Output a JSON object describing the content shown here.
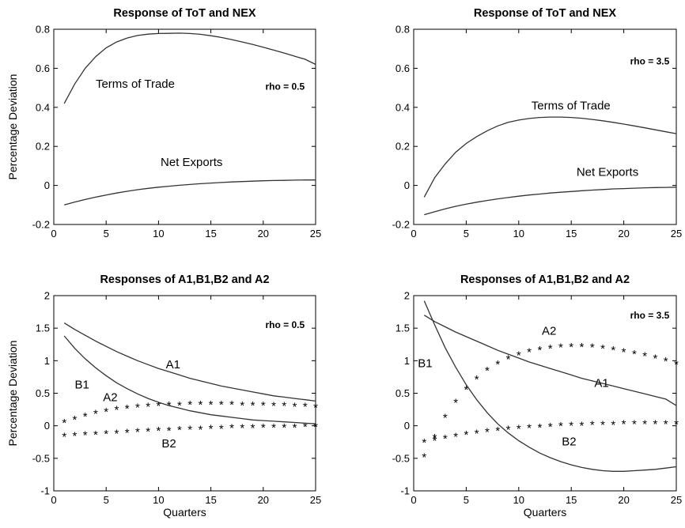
{
  "chart_data": [
    {
      "type": "line",
      "title": "Response of ToT and NEX",
      "xlabel": "",
      "ylabel": "Percentage Deviation",
      "xlim": [
        0,
        25
      ],
      "ylim": [
        -0.2,
        0.8
      ],
      "xticks": [
        "0",
        "5",
        "10",
        "15",
        "20",
        "25"
      ],
      "yticks": [
        "-0.2",
        "0",
        "0.2",
        "0.4",
        "0.6",
        "0.8"
      ],
      "grid": false,
      "annotations": [
        {
          "text": "rho = 0.5",
          "x": 20.2,
          "y": 0.49,
          "bold": true
        }
      ],
      "series": [
        {
          "name": "Terms of Trade",
          "label_pos": [
            4,
            0.5
          ],
          "marker": "none",
          "x": [
            1,
            2,
            3,
            4,
            5,
            6,
            7,
            8,
            9,
            10,
            11,
            12,
            13,
            14,
            15,
            16,
            17,
            18,
            19,
            20,
            21,
            22,
            23,
            24,
            25
          ],
          "values": [
            0.42,
            0.52,
            0.6,
            0.66,
            0.705,
            0.735,
            0.755,
            0.768,
            0.775,
            0.778,
            0.779,
            0.78,
            0.778,
            0.774,
            0.767,
            0.758,
            0.747,
            0.735,
            0.722,
            0.708,
            0.693,
            0.678,
            0.662,
            0.646,
            0.62
          ]
        },
        {
          "name": "Net Exports",
          "label_pos": [
            10.2,
            0.1
          ],
          "marker": "none",
          "x": [
            1,
            2,
            3,
            4,
            5,
            6,
            7,
            8,
            9,
            10,
            11,
            12,
            13,
            14,
            15,
            16,
            17,
            18,
            19,
            20,
            21,
            22,
            23,
            24,
            25
          ],
          "values": [
            -0.1,
            -0.085,
            -0.072,
            -0.06,
            -0.049,
            -0.039,
            -0.03,
            -0.022,
            -0.015,
            -0.009,
            -0.004,
            0.001,
            0.005,
            0.009,
            0.012,
            0.015,
            0.018,
            0.02,
            0.022,
            0.024,
            0.025,
            0.026,
            0.027,
            0.028,
            0.028
          ]
        }
      ]
    },
    {
      "type": "line",
      "title": "Response of ToT and NEX",
      "xlabel": "",
      "ylabel": "",
      "xlim": [
        0,
        25
      ],
      "ylim": [
        -0.2,
        0.8
      ],
      "xticks": [
        "0",
        "5",
        "10",
        "15",
        "20",
        "25"
      ],
      "yticks": [
        "-0.2",
        "0",
        "0.2",
        "0.4",
        "0.6",
        "0.8"
      ],
      "grid": false,
      "annotations": [
        {
          "text": "rho = 3.5",
          "x": 20.6,
          "y": 0.62,
          "bold": true
        }
      ],
      "series": [
        {
          "name": "Terms of Trade",
          "label_pos": [
            11.2,
            0.39
          ],
          "marker": "none",
          "x": [
            1,
            2,
            3,
            4,
            5,
            6,
            7,
            8,
            9,
            10,
            11,
            12,
            13,
            14,
            15,
            16,
            17,
            18,
            19,
            20,
            21,
            22,
            23,
            24,
            25
          ],
          "values": [
            -0.06,
            0.04,
            0.11,
            0.17,
            0.215,
            0.25,
            0.28,
            0.305,
            0.323,
            0.335,
            0.343,
            0.348,
            0.35,
            0.35,
            0.348,
            0.344,
            0.338,
            0.331,
            0.323,
            0.314,
            0.305,
            0.295,
            0.285,
            0.275,
            0.265
          ]
        },
        {
          "name": "Net Exports",
          "label_pos": [
            15.5,
            0.05
          ],
          "marker": "none",
          "x": [
            1,
            2,
            3,
            4,
            5,
            6,
            7,
            8,
            9,
            10,
            11,
            12,
            13,
            14,
            15,
            16,
            17,
            18,
            19,
            20,
            21,
            22,
            23,
            24,
            25
          ],
          "values": [
            -0.15,
            -0.135,
            -0.12,
            -0.107,
            -0.096,
            -0.086,
            -0.077,
            -0.069,
            -0.062,
            -0.055,
            -0.049,
            -0.044,
            -0.039,
            -0.035,
            -0.031,
            -0.027,
            -0.024,
            -0.021,
            -0.018,
            -0.016,
            -0.014,
            -0.012,
            -0.011,
            -0.01,
            -0.009
          ]
        }
      ]
    },
    {
      "type": "line",
      "title": "Responses of A1,B1,B2 and A2",
      "xlabel": "Quarters",
      "ylabel": "Percentage Deviation",
      "xlim": [
        0,
        25
      ],
      "ylim": [
        -1,
        2
      ],
      "xticks": [
        "0",
        "5",
        "10",
        "15",
        "20",
        "25"
      ],
      "yticks": [
        "-1",
        "-0.5",
        "0",
        "0.5",
        "1",
        "1.5",
        "2"
      ],
      "grid": false,
      "annotations": [
        {
          "text": "rho = 0.5",
          "x": 20.2,
          "y": 1.5,
          "bold": true
        }
      ],
      "series": [
        {
          "name": "A1",
          "label_pos": [
            10.7,
            0.88
          ],
          "marker": "none",
          "x": [
            1,
            2,
            3,
            4,
            5,
            6,
            7,
            8,
            9,
            10,
            11,
            12,
            13,
            14,
            15,
            16,
            17,
            18,
            19,
            20,
            21,
            22,
            23,
            24,
            25
          ],
          "values": [
            1.58,
            1.48,
            1.39,
            1.3,
            1.22,
            1.14,
            1.07,
            1.0,
            0.94,
            0.88,
            0.83,
            0.78,
            0.73,
            0.69,
            0.65,
            0.61,
            0.58,
            0.55,
            0.52,
            0.49,
            0.46,
            0.44,
            0.42,
            0.4,
            0.38
          ]
        },
        {
          "name": "B1",
          "label_pos": [
            2,
            0.57
          ],
          "marker": "none",
          "x": [
            1,
            2,
            3,
            4,
            5,
            6,
            7,
            8,
            9,
            10,
            11,
            12,
            13,
            14,
            15,
            16,
            17,
            18,
            19,
            20,
            21,
            22,
            23,
            24,
            25
          ],
          "values": [
            1.38,
            1.19,
            1.03,
            0.89,
            0.77,
            0.66,
            0.57,
            0.49,
            0.42,
            0.36,
            0.31,
            0.27,
            0.23,
            0.2,
            0.17,
            0.15,
            0.13,
            0.11,
            0.09,
            0.08,
            0.07,
            0.06,
            0.05,
            0.04,
            0.03
          ]
        },
        {
          "name": "A2",
          "label_pos": [
            4.7,
            0.38
          ],
          "marker": "*",
          "x": [
            1,
            2,
            3,
            4,
            5,
            6,
            7,
            8,
            9,
            10,
            11,
            12,
            13,
            14,
            15,
            16,
            17,
            18,
            19,
            20,
            21,
            22,
            23,
            24,
            25
          ],
          "values": [
            0.08,
            0.13,
            0.18,
            0.22,
            0.25,
            0.28,
            0.3,
            0.32,
            0.33,
            0.34,
            0.35,
            0.35,
            0.36,
            0.36,
            0.36,
            0.36,
            0.36,
            0.35,
            0.35,
            0.35,
            0.34,
            0.34,
            0.33,
            0.33,
            0.32
          ]
        },
        {
          "name": "B2",
          "label_pos": [
            10.3,
            -0.33
          ],
          "marker": "*",
          "x": [
            1,
            2,
            3,
            4,
            5,
            6,
            7,
            8,
            9,
            10,
            11,
            12,
            13,
            14,
            15,
            16,
            17,
            18,
            19,
            20,
            21,
            22,
            23,
            24,
            25
          ],
          "values": [
            -0.13,
            -0.12,
            -0.11,
            -0.1,
            -0.09,
            -0.08,
            -0.07,
            -0.06,
            -0.05,
            -0.04,
            -0.04,
            -0.03,
            -0.02,
            -0.02,
            -0.01,
            -0.01,
            0.0,
            0.0,
            0.0,
            0.01,
            0.01,
            0.01,
            0.01,
            0.02,
            0.02
          ]
        }
      ]
    },
    {
      "type": "line",
      "title": "Responses of A1,B1,B2 and A2",
      "xlabel": "Quarters",
      "ylabel": "",
      "xlim": [
        0,
        25
      ],
      "ylim": [
        -1,
        2
      ],
      "xticks": [
        "0",
        "5",
        "10",
        "15",
        "20",
        "25"
      ],
      "yticks": [
        "-1",
        "-0.5",
        "0",
        "0.5",
        "1",
        "1.5",
        "2"
      ],
      "grid": false,
      "annotations": [
        {
          "text": "rho = 3.5",
          "x": 20.6,
          "y": 1.65,
          "bold": true
        }
      ],
      "series": [
        {
          "name": "A1",
          "label_pos": [
            17.2,
            0.6
          ],
          "marker": "none",
          "x": [
            1,
            2,
            3,
            4,
            5,
            6,
            7,
            8,
            9,
            10,
            11,
            12,
            13,
            14,
            15,
            16,
            17,
            18,
            19,
            20,
            21,
            22,
            23,
            24,
            25
          ],
          "values": [
            1.7,
            1.6,
            1.52,
            1.44,
            1.37,
            1.3,
            1.23,
            1.16,
            1.1,
            1.04,
            0.98,
            0.93,
            0.88,
            0.83,
            0.78,
            0.73,
            0.69,
            0.65,
            0.61,
            0.57,
            0.53,
            0.49,
            0.45,
            0.41,
            0.31
          ]
        },
        {
          "name": "B1",
          "label_pos": [
            0.4,
            0.9
          ],
          "marker": "none",
          "x": [
            1,
            2,
            3,
            4,
            5,
            6,
            7,
            8,
            9,
            10,
            11,
            12,
            13,
            14,
            15,
            16,
            17,
            18,
            19,
            20,
            21,
            22,
            23,
            24,
            25
          ],
          "values": [
            1.92,
            1.55,
            1.2,
            0.9,
            0.63,
            0.4,
            0.2,
            0.03,
            -0.11,
            -0.23,
            -0.33,
            -0.42,
            -0.49,
            -0.55,
            -0.6,
            -0.64,
            -0.67,
            -0.69,
            -0.7,
            -0.7,
            -0.69,
            -0.68,
            -0.67,
            -0.65,
            -0.63
          ]
        },
        {
          "name": "A2",
          "label_pos": [
            12.2,
            1.4
          ],
          "marker": "*",
          "x": [
            1,
            2,
            3,
            4,
            5,
            6,
            7,
            8,
            9,
            10,
            11,
            12,
            13,
            14,
            15,
            16,
            17,
            18,
            19,
            20,
            21,
            22,
            23,
            24,
            25
          ],
          "values": [
            -0.45,
            -0.15,
            0.16,
            0.39,
            0.59,
            0.75,
            0.88,
            0.98,
            1.06,
            1.12,
            1.17,
            1.2,
            1.22,
            1.24,
            1.25,
            1.25,
            1.24,
            1.22,
            1.2,
            1.17,
            1.14,
            1.11,
            1.07,
            1.03,
            0.98
          ]
        },
        {
          "name": "B2",
          "label_pos": [
            14.1,
            -0.3
          ],
          "marker": "*",
          "x": [
            1,
            2,
            3,
            4,
            5,
            6,
            7,
            8,
            9,
            10,
            11,
            12,
            13,
            14,
            15,
            16,
            17,
            18,
            19,
            20,
            21,
            22,
            23,
            24,
            25
          ],
          "values": [
            -0.22,
            -0.19,
            -0.16,
            -0.13,
            -0.1,
            -0.08,
            -0.06,
            -0.04,
            -0.02,
            -0.01,
            0.0,
            0.01,
            0.02,
            0.03,
            0.04,
            0.04,
            0.05,
            0.05,
            0.05,
            0.06,
            0.06,
            0.06,
            0.06,
            0.06,
            0.06
          ]
        }
      ]
    }
  ]
}
